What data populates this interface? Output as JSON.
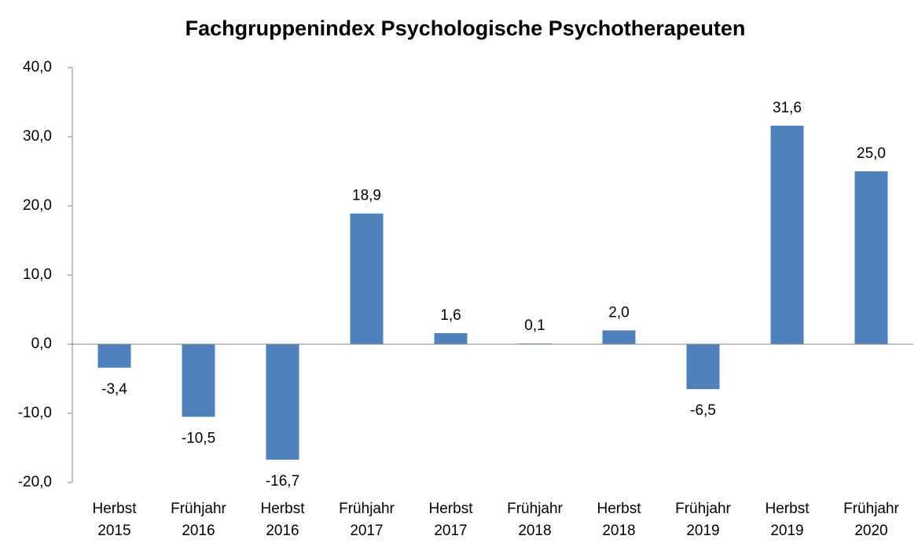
{
  "chart_data": {
    "type": "bar",
    "title": "Fachgruppenindex Psychologische Psychotherapeuten",
    "categories": [
      "Herbst 2015",
      "Frühjahr 2016",
      "Herbst 2016",
      "Frühjahr 2017",
      "Herbst 2017",
      "Frühjahr 2018",
      "Herbst 2018",
      "Frühjahr 2019",
      "Herbst 2019",
      "Frühjahr 2020"
    ],
    "values": [
      -3.4,
      -10.5,
      -16.7,
      18.9,
      1.6,
      0.1,
      2.0,
      -6.5,
      31.6,
      25.0
    ],
    "value_labels": [
      "-3,4",
      "-10,5",
      "-16,7",
      "18,9",
      "1,6",
      "0,1",
      "2,0",
      "-6,5",
      "31,6",
      "25,0"
    ],
    "color": "#4f81bd",
    "ylim": [
      -20,
      40
    ],
    "yticks": [
      {
        "value": -20,
        "label": "-20,0"
      },
      {
        "value": -10,
        "label": "-10,0"
      },
      {
        "value": 0,
        "label": "0,0"
      },
      {
        "value": 10,
        "label": "10,0"
      },
      {
        "value": 20,
        "label": "20,0"
      },
      {
        "value": 30,
        "label": "30,0"
      },
      {
        "value": 40,
        "label": "40,0"
      }
    ],
    "grid": false
  }
}
